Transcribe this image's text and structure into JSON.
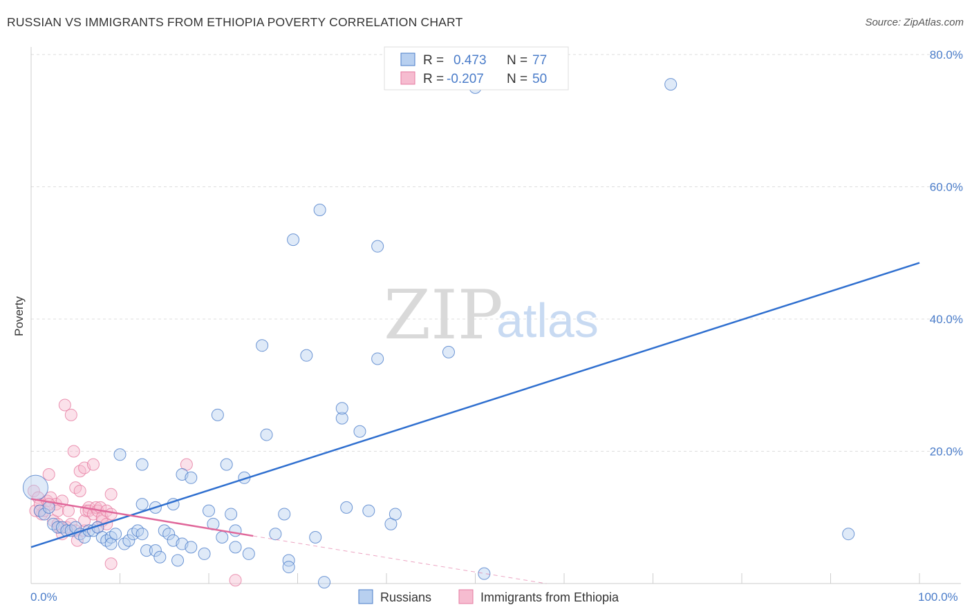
{
  "title": "RUSSIAN VS IMMIGRANTS FROM ETHIOPIA POVERTY CORRELATION CHART",
  "source": "Source: ZipAtlas.com",
  "watermark": {
    "zip": "ZIP",
    "atlas": "atlas"
  },
  "colors": {
    "blue": "#4a7cc9",
    "blue_fill": "#b8d0f0",
    "blue_line": "#2f6fcf",
    "pink": "#e67aa0",
    "pink_fill": "#f6bcd0",
    "pink_line": "#e0679a"
  },
  "legend": {
    "rows": [
      {
        "r_label": "R =",
        "r_value": "0.473",
        "n_label": "N =",
        "n_value": "77"
      },
      {
        "r_label": "R =",
        "r_value": "-0.207",
        "n_label": "N =",
        "n_value": "50"
      }
    ]
  },
  "bottom_legend": [
    "Russians",
    "Immigrants from Ethiopia"
  ],
  "chart_data": {
    "type": "scatter",
    "title": "RUSSIAN VS IMMIGRANTS FROM ETHIOPIA POVERTY CORRELATION CHART",
    "xlabel": "",
    "ylabel": "Poverty",
    "xlim": [
      0,
      100
    ],
    "ylim": [
      0,
      80
    ],
    "x_tick_labels": [
      "0.0%",
      "100.0%"
    ],
    "y_ticks": [
      20,
      40,
      60,
      80
    ],
    "y_tick_labels": [
      "20.0%",
      "40.0%",
      "60.0%",
      "80.0%"
    ],
    "grid": "horizontal dashed",
    "legend_position": "top-center",
    "series": [
      {
        "name": "Russians",
        "R": 0.473,
        "N": 77,
        "trend": {
          "x": [
            0,
            100
          ],
          "y": [
            5.5,
            48.5
          ]
        },
        "points": [
          [
            0.5,
            14.5
          ],
          [
            1,
            11
          ],
          [
            1.5,
            10.5
          ],
          [
            2,
            11.5
          ],
          [
            2.5,
            9
          ],
          [
            3,
            8.5
          ],
          [
            3.5,
            8.5
          ],
          [
            4,
            8
          ],
          [
            4.5,
            8
          ],
          [
            5,
            8.5
          ],
          [
            5.5,
            7.5
          ],
          [
            6,
            7
          ],
          [
            6.5,
            8
          ],
          [
            7,
            8
          ],
          [
            7.5,
            8.5
          ],
          [
            8,
            7
          ],
          [
            8.5,
            6.5
          ],
          [
            9,
            7
          ],
          [
            9,
            6
          ],
          [
            9.5,
            7.5
          ],
          [
            10,
            19.5
          ],
          [
            10.5,
            6
          ],
          [
            11,
            6.5
          ],
          [
            11.5,
            7.5
          ],
          [
            12,
            8
          ],
          [
            12.5,
            7.5
          ],
          [
            12.5,
            12
          ],
          [
            12.5,
            18
          ],
          [
            13,
            5
          ],
          [
            14,
            11.5
          ],
          [
            14,
            5
          ],
          [
            14.5,
            4
          ],
          [
            15,
            8
          ],
          [
            15.5,
            7.5
          ],
          [
            16,
            12
          ],
          [
            16,
            6.5
          ],
          [
            16.5,
            3.5
          ],
          [
            17,
            16.5
          ],
          [
            17,
            6
          ],
          [
            18,
            16
          ],
          [
            18,
            5.5
          ],
          [
            19.5,
            4.5
          ],
          [
            20,
            11
          ],
          [
            20.5,
            9
          ],
          [
            21,
            25.5
          ],
          [
            21.5,
            7
          ],
          [
            22,
            18
          ],
          [
            22.5,
            10.5
          ],
          [
            23,
            8
          ],
          [
            23,
            5.5
          ],
          [
            24,
            16
          ],
          [
            24.5,
            4.5
          ],
          [
            26,
            36
          ],
          [
            26.5,
            22.5
          ],
          [
            27.5,
            7.5
          ],
          [
            28.5,
            10.5
          ],
          [
            29,
            3.5
          ],
          [
            29,
            2.5
          ],
          [
            29.5,
            52
          ],
          [
            31,
            34.5
          ],
          [
            32,
            7
          ],
          [
            32.5,
            56.5
          ],
          [
            33,
            0.2
          ],
          [
            35,
            25
          ],
          [
            35,
            26.5
          ],
          [
            35.5,
            11.5
          ],
          [
            37,
            23
          ],
          [
            38,
            11
          ],
          [
            39,
            34
          ],
          [
            39,
            51
          ],
          [
            40.5,
            9
          ],
          [
            41,
            10.5
          ],
          [
            47,
            35
          ],
          [
            50,
            75
          ],
          [
            51,
            1.5
          ],
          [
            72,
            75.5
          ],
          [
            92,
            7.5
          ]
        ]
      },
      {
        "name": "Immigrants from Ethiopia",
        "R": -0.207,
        "N": 50,
        "trend": {
          "x": [
            0,
            25
          ],
          "y": [
            12.8,
            7.2
          ]
        },
        "trend_extension": {
          "x": [
            25,
            58
          ],
          "y": [
            7.2,
            0
          ]
        },
        "points": [
          [
            0.3,
            14
          ],
          [
            0.5,
            11
          ],
          [
            0.8,
            13
          ],
          [
            1,
            12
          ],
          [
            1.2,
            10.5
          ],
          [
            1.5,
            11
          ],
          [
            1.8,
            12.5
          ],
          [
            2,
            16.5
          ],
          [
            2.2,
            13
          ],
          [
            2.5,
            9.5
          ],
          [
            2.8,
            12
          ],
          [
            3,
            11
          ],
          [
            3.2,
            8.5
          ],
          [
            3.5,
            12.5
          ],
          [
            3.5,
            7.5
          ],
          [
            3.8,
            27
          ],
          [
            4,
            8.5
          ],
          [
            4.2,
            11
          ],
          [
            4.5,
            9
          ],
          [
            4.5,
            25.5
          ],
          [
            4.8,
            20
          ],
          [
            5,
            8
          ],
          [
            5,
            14.5
          ],
          [
            5.2,
            6.5
          ],
          [
            5.5,
            17
          ],
          [
            5.5,
            14
          ],
          [
            6,
            8
          ],
          [
            6,
            9.5
          ],
          [
            6,
            17.5
          ],
          [
            6.2,
            11
          ],
          [
            6.5,
            11.5
          ],
          [
            6.5,
            11
          ],
          [
            7,
            18
          ],
          [
            7,
            10.5
          ],
          [
            7.3,
            11.5
          ],
          [
            7.5,
            8.5
          ],
          [
            7.5,
            11
          ],
          [
            7.8,
            11.5
          ],
          [
            8,
            9.5
          ],
          [
            8,
            10
          ],
          [
            8.5,
            9
          ],
          [
            8.5,
            11
          ],
          [
            9,
            10.5
          ],
          [
            9,
            13.5
          ],
          [
            9,
            3
          ],
          [
            17.5,
            18
          ],
          [
            23,
            0.5
          ],
          [
            1,
            11
          ],
          [
            2,
            12
          ],
          [
            3,
            9
          ]
        ]
      }
    ]
  }
}
